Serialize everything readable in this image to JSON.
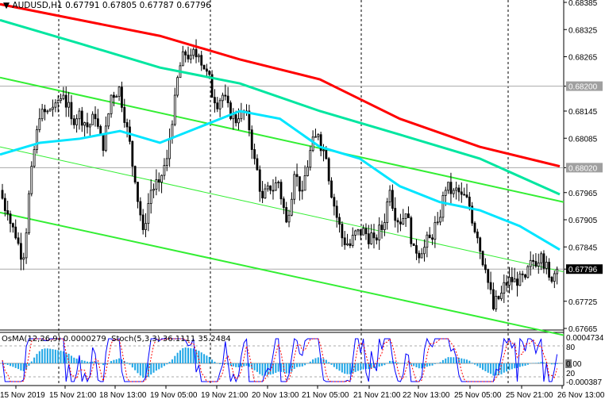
{
  "header": {
    "symbol": "AUDUSD,H1",
    "open": "0.67791",
    "high": "0.67805",
    "low": "0.67787",
    "close": "0.67796"
  },
  "oscillator": {
    "osma_label": "OsMA(12,26,9)",
    "osma_value": "0.0000279",
    "stoch_label": "Stoch(5,3,3)",
    "stoch_main": "36.1111",
    "stoch_signal": "35.2484",
    "axis_top": "0.0004734",
    "axis_80": "80",
    "axis_zero": "0.00",
    "axis_20": "20",
    "axis_bottom": "-0.000387"
  },
  "colors": {
    "candle_up": "#ffffff",
    "candle_down": "#000000",
    "ma_slow": "#ff0000",
    "ma_mid": "#00e6a0",
    "ma_fast": "#00e5ff",
    "channel": "#33ee33",
    "histogram": "#1ea6e6",
    "stoch_main": "#0000ff",
    "stoch_signal": "#ff0000"
  },
  "chart_data": {
    "type": "candlestick",
    "title": "AUDUSD,H1",
    "ylim": [
      0.67665,
      0.68385
    ],
    "y_ticks": [
      "0.68385",
      "0.68325",
      "0.68265",
      "0.68200",
      "0.68145",
      "0.68085",
      "0.68020",
      "0.67965",
      "0.67905",
      "0.67845",
      "0.67796",
      "0.67725",
      "0.67665"
    ],
    "highlighted_levels": [
      "0.68200",
      "0.68020"
    ],
    "current_price": "0.67796",
    "x_ticks": [
      "15 Nov 2019",
      "15 Nov 21:00",
      "18 Nov 13:00",
      "19 Nov 05:00",
      "19 Nov 21:00",
      "20 Nov 13:00",
      "21 Nov 05:00",
      "21 Nov 21:00",
      "22 Nov 13:00",
      "25 Nov 05:00",
      "25 Nov 21:00",
      "26 Nov 13:00"
    ],
    "closes": [
      0.6797,
      0.67918,
      0.67865,
      0.67821,
      0.68023,
      0.68128,
      0.68145,
      0.68163,
      0.6818,
      0.68128,
      0.68145,
      0.6811,
      0.68128,
      0.68058,
      0.6818,
      0.68198,
      0.6811,
      0.67988,
      0.67883,
      0.6797,
      0.67988,
      0.6804,
      0.6818,
      0.68276,
      0.68268,
      0.68268,
      0.68233,
      0.68163,
      0.6818,
      0.68128,
      0.68128,
      0.68145,
      0.6804,
      0.67953,
      0.6797,
      0.67988,
      0.679,
      0.68005,
      0.6797,
      0.68058,
      0.68093,
      0.6804,
      0.67935,
      0.67865,
      0.67848,
      0.67883,
      0.67874,
      0.67865,
      0.67883,
      0.6797,
      0.679,
      0.67918,
      0.67848,
      0.6783,
      0.67865,
      0.679,
      0.6797,
      0.6797,
      0.67961,
      0.67935,
      0.67865,
      0.67795,
      0.67708,
      0.67743,
      0.67778,
      0.6776,
      0.67778,
      0.67813,
      0.6783,
      0.67778,
      0.67796
    ],
    "ma_slow": [
      0.68381,
      0.68346,
      0.68311,
      0.68259,
      0.68215,
      0.68128,
      0.68066,
      0.68023
    ],
    "ma_mid": [
      0.68346,
      0.68294,
      0.68241,
      0.68206,
      0.68145,
      0.68093,
      0.6804,
      0.67961
    ],
    "ma_fast": [
      0.68049,
      0.68075,
      0.68084,
      0.68101,
      0.68075,
      0.6811,
      0.68145,
      0.68128,
      0.68066,
      0.6804,
      0.67979,
      0.67944,
      0.67926,
      0.67891,
      0.67839
    ],
    "channel_upper": [
      0.68219,
      0.67944
    ],
    "channel_middle": [
      0.68066,
      0.6779
    ],
    "channel_lower": [
      0.67921,
      0.6765
    ]
  }
}
